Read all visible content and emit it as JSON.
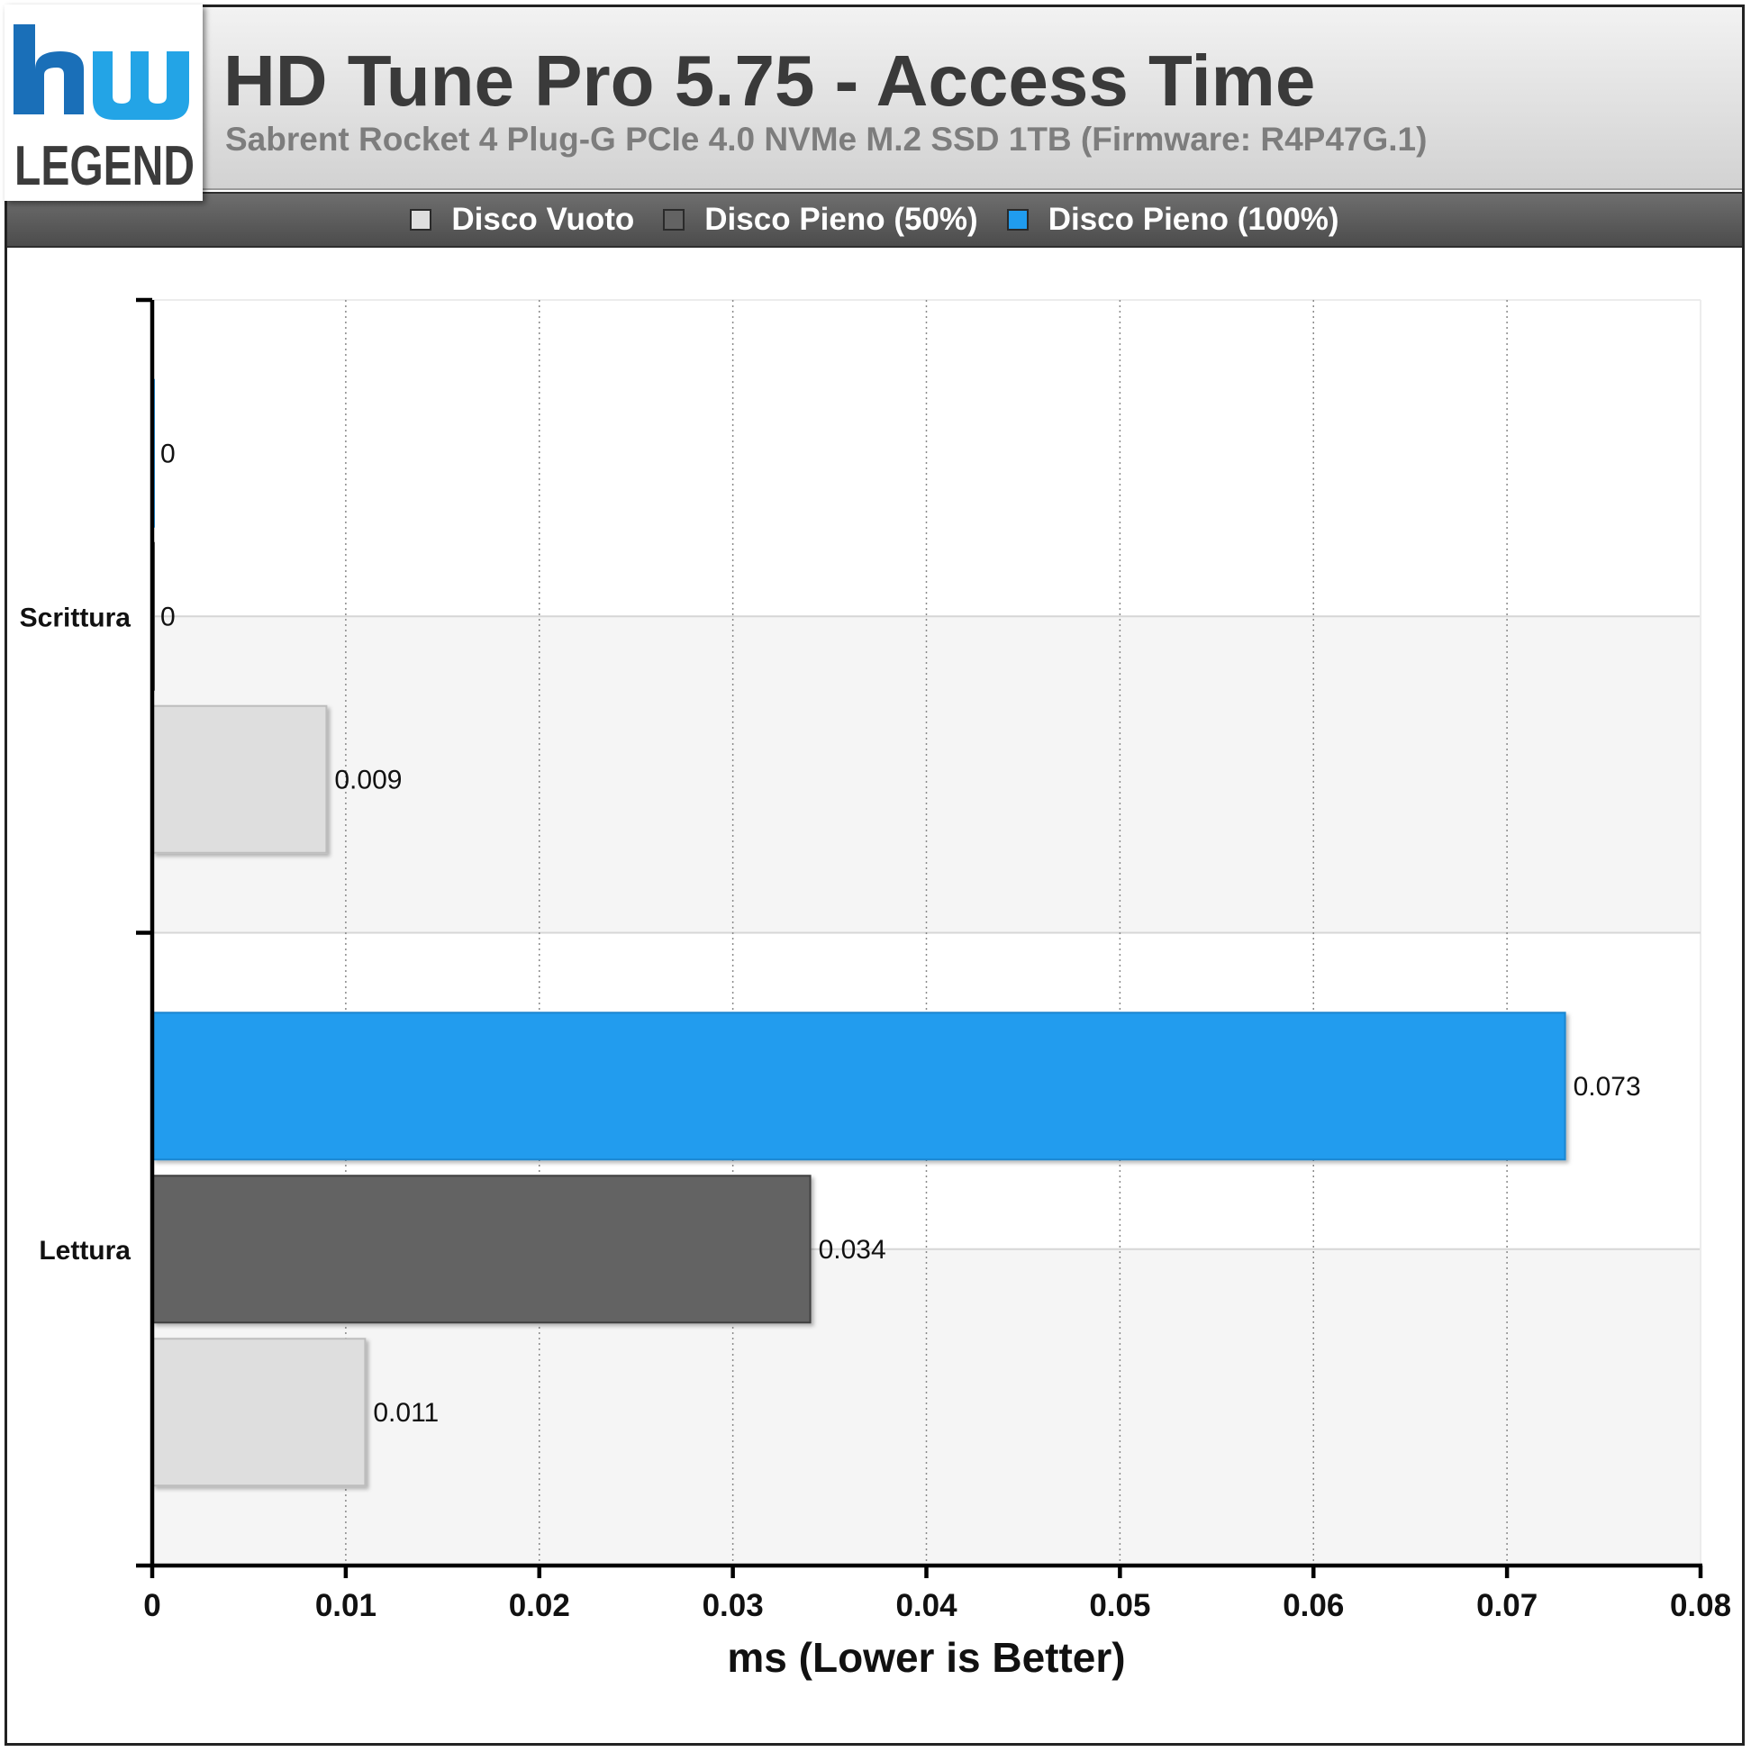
{
  "header": {
    "title": "HD Tune Pro 5.75 - Access Time",
    "subtitle": "Sabrent Rocket 4 Plug-G PCIe 4.0 NVMe M.2 SSD 1TB (Firmware: R4P47G.1)",
    "logo_text": "LEGEND"
  },
  "colors": {
    "disco_vuoto": "#dedede",
    "disco_pieno_50": "#636363",
    "disco_pieno_100": "#209cee",
    "legend_bar": "#5a5a5a"
  },
  "chart_data": {
    "type": "bar",
    "orientation": "horizontal",
    "title": "HD Tune Pro 5.75 - Access Time",
    "subtitle": "Sabrent Rocket 4 Plug-G PCIe 4.0 NVMe M.2 SSD 1TB (Firmware: R4P47G.1)",
    "categories": [
      "Scrittura",
      "Lettura"
    ],
    "series": [
      {
        "name": "Disco Vuoto",
        "color": "#dedede",
        "values": [
          0.009,
          0.011
        ],
        "labels": [
          "0.009",
          "0.011"
        ]
      },
      {
        "name": "Disco Pieno (50%)",
        "color": "#636363",
        "values": [
          0,
          0.034
        ],
        "labels": [
          "0",
          "0.034"
        ]
      },
      {
        "name": "Disco Pieno (100%)",
        "color": "#209cee",
        "values": [
          0,
          0.073
        ],
        "labels": [
          "0",
          "0.073"
        ]
      }
    ],
    "xlabel": "ms (Lower is Better)",
    "ylabel": "",
    "xlim": [
      0,
      0.08
    ],
    "xticks": [
      0,
      0.01,
      0.02,
      0.03,
      0.04,
      0.05,
      0.06,
      0.07,
      0.08
    ],
    "xtick_labels": [
      "0",
      "0.01",
      "0.02",
      "0.03",
      "0.04",
      "0.05",
      "0.06",
      "0.07",
      "0.08"
    ],
    "grid": "vertical dotted",
    "legend_position": "top"
  }
}
